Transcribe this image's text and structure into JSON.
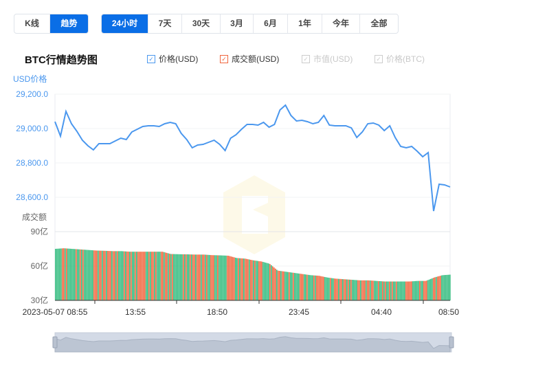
{
  "mode_tabs": [
    {
      "label": "K线",
      "active": false
    },
    {
      "label": "趋势",
      "active": true
    }
  ],
  "range_tabs": [
    {
      "label": "24小时",
      "active": true
    },
    {
      "label": "7天"
    },
    {
      "label": "30天"
    },
    {
      "label": "3月"
    },
    {
      "label": "6月"
    },
    {
      "label": "1年"
    },
    {
      "label": "今年"
    },
    {
      "label": "全部"
    }
  ],
  "title": "BTC行情趋势图",
  "legend": [
    {
      "label": "价格(USD)",
      "checked": true,
      "color": "#4a97ee"
    },
    {
      "label": "成交额(USD)",
      "checked": true,
      "color": "#f0643c"
    },
    {
      "label": "市值(USD)",
      "checked": false,
      "color": "#cccccc"
    },
    {
      "label": "价格(BTC)",
      "checked": false,
      "color": "#cccccc"
    }
  ],
  "chart_data": {
    "type": "line",
    "price_axis_label": "USD价格",
    "volume_axis_label": "成交额",
    "x_start": "2023-05-07 08:55",
    "x_end": "2023-05-08 08:50",
    "x_tick_labels": [
      "2023-05-07 08:55",
      "13:55",
      "18:50",
      "23:45",
      "04:40",
      "08:50"
    ],
    "price_ticks": [
      "29,200.0",
      "29,000.0",
      "28,800.0",
      "28,600.0"
    ],
    "price_ylim": [
      28480,
      29200
    ],
    "volume_ticks": [
      "90亿",
      "60亿",
      "30亿"
    ],
    "volume_ylim": [
      30,
      90
    ],
    "volume_unit": "亿",
    "price": [
      29040,
      28956,
      29100,
      29028,
      28984,
      28932,
      28900,
      28876,
      28912,
      28912,
      28912,
      28928,
      28944,
      28936,
      28980,
      28996,
      29012,
      29016,
      29016,
      29012,
      29028,
      29036,
      29028,
      28972,
      28936,
      28888,
      28904,
      28908,
      28920,
      28932,
      28908,
      28872,
      28944,
      28964,
      28996,
      29024,
      29024,
      29020,
      29036,
      29008,
      29024,
      29108,
      29136,
      29076,
      29044,
      29048,
      29040,
      29028,
      29036,
      29076,
      29020,
      29016,
      29016,
      29016,
      29004,
      28948,
      28980,
      29028,
      29032,
      29020,
      28988,
      29016,
      28948,
      28896,
      28888,
      28896,
      28868,
      28836,
      28860,
      28520,
      28676,
      28672,
      28660
    ],
    "volume": [
      75,
      75.5,
      75,
      74.5,
      74,
      73.5,
      73.3,
      73,
      73,
      72.5,
      72.5,
      72.5,
      72.5,
      72.5,
      70.5,
      70.3,
      70.2,
      70,
      70,
      69.5,
      69.3,
      69,
      67,
      66.5,
      65,
      64,
      62,
      56,
      55,
      54,
      53,
      52,
      51.5,
      50,
      49,
      48.5,
      48,
      47.5,
      47.5,
      47,
      46.5,
      46.5,
      46.5,
      46.5,
      47,
      47,
      50,
      52,
      52.5
    ],
    "colors": {
      "price_line": "#4a97ee",
      "volume_up": "#f0643c",
      "volume_down": "#2fba7c",
      "axis_text": "#4a97ee"
    }
  }
}
